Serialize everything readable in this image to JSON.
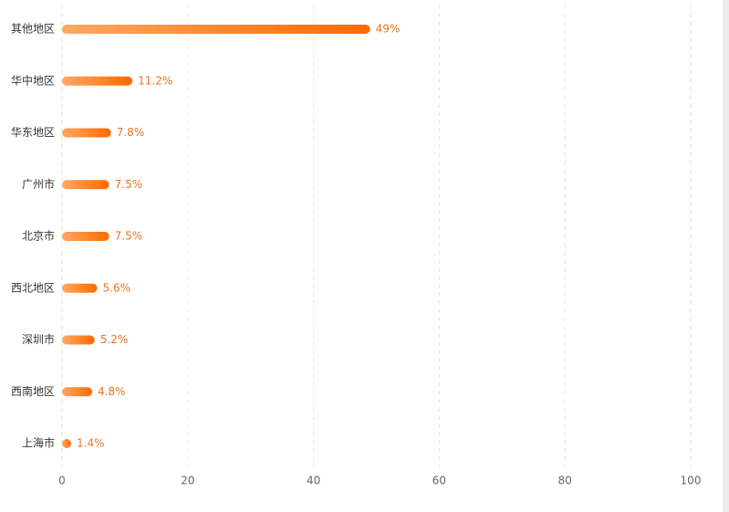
{
  "chart_data": {
    "type": "bar",
    "orientation": "horizontal",
    "categories": [
      "其他地区",
      "华中地区",
      "华东地区",
      "广州市",
      "北京市",
      "西北地区",
      "深圳市",
      "西南地区",
      "上海市"
    ],
    "values": [
      49,
      11.2,
      7.8,
      7.5,
      7.5,
      5.6,
      5.2,
      4.8,
      1.4
    ],
    "value_labels": [
      "49%",
      "11.2%",
      "7.8%",
      "7.5%",
      "7.5%",
      "5.6%",
      "5.2%",
      "4.8%",
      "1.4%"
    ],
    "colors": [
      "#ffa866",
      "#ff6a00"
    ],
    "xlim": [
      0,
      100
    ],
    "xticks": [
      0,
      20,
      40,
      60,
      80,
      100
    ],
    "grid": true
  }
}
